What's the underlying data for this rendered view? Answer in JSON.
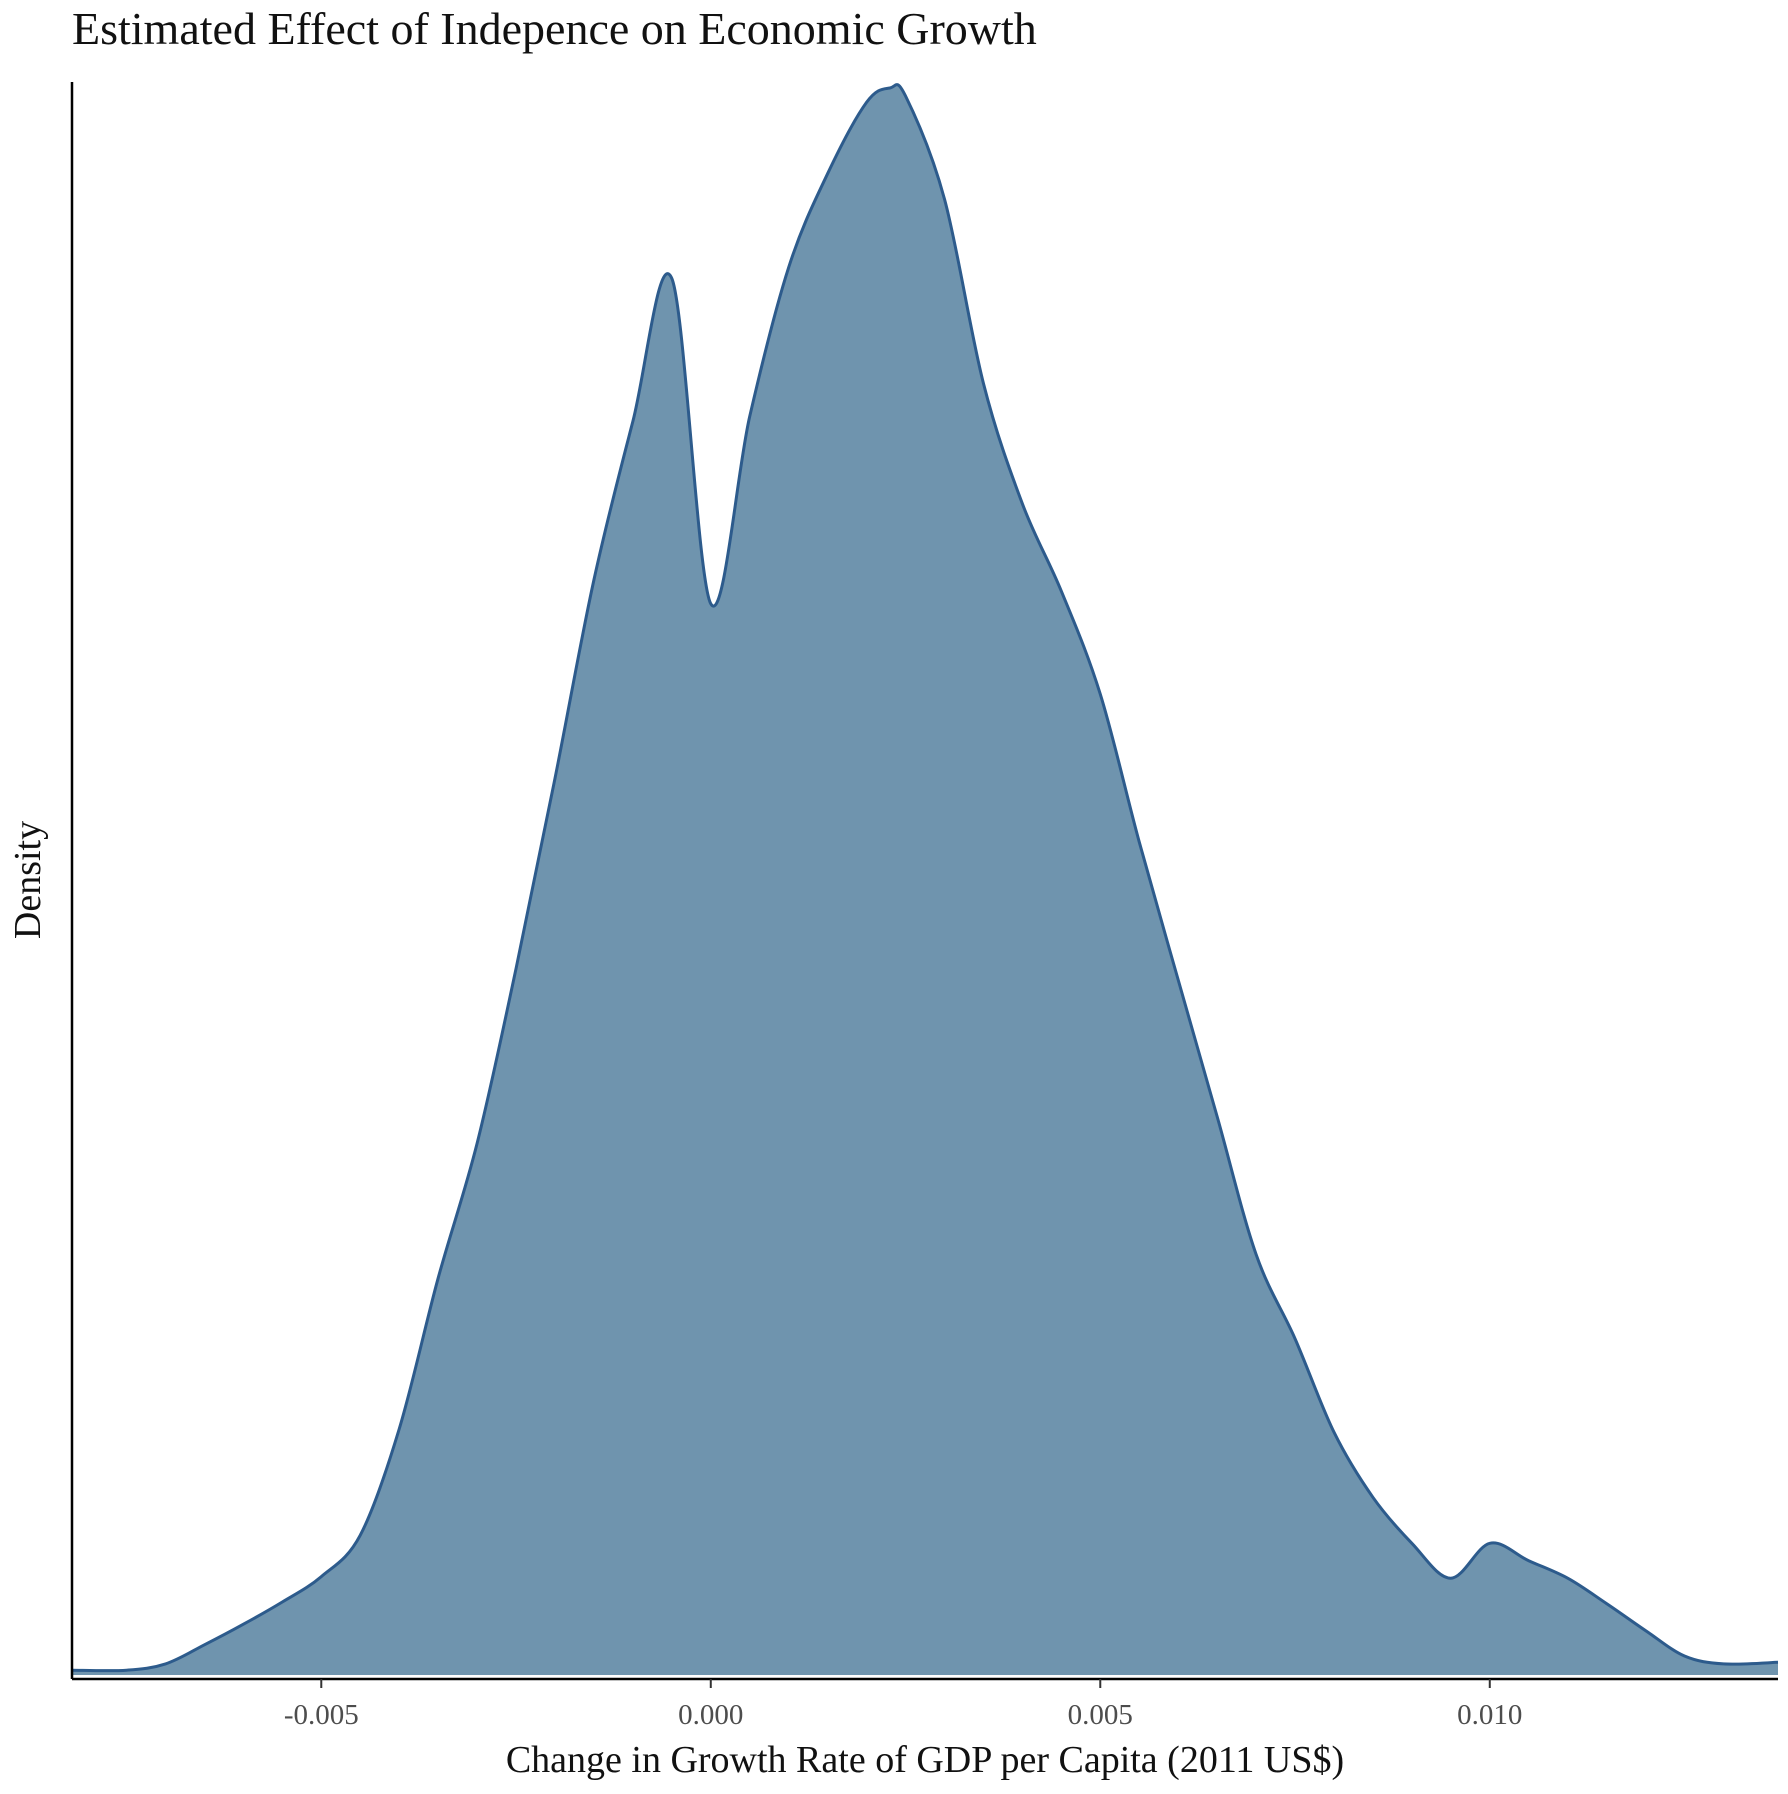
{
  "chart_data": {
    "type": "area",
    "title": "Estimated Effect of Indepence on Economic Growth",
    "xlabel": "Change in Growth Rate of GDP per Capita (2011 US$)",
    "ylabel": "Density",
    "xlim": [
      -0.0082,
      0.0137
    ],
    "ylim": [
      0,
      1.0
    ],
    "x_ticks": [
      -0.005,
      0.0,
      0.005,
      0.01
    ],
    "x_tick_labels": [
      "-0.005",
      "0.000",
      "0.005",
      "0.010"
    ],
    "y_ticks_shown": false,
    "grid": false,
    "legend": "none",
    "fill_color": "#6f94ae",
    "line_color": "#2d5b8c",
    "series": [
      {
        "x": [
          -0.0082,
          -0.0075,
          -0.007,
          -0.0065,
          -0.006,
          -0.0055,
          -0.005,
          -0.0045,
          -0.004,
          -0.0035,
          -0.003,
          -0.0025,
          -0.002,
          -0.0015,
          -0.001,
          -0.0005,
          0.0,
          0.0005,
          0.001,
          0.0015,
          0.002,
          0.0023,
          0.0025,
          0.003,
          0.0035,
          0.004,
          0.0045,
          0.005,
          0.0055,
          0.006,
          0.0065,
          0.007,
          0.0075,
          0.008,
          0.0085,
          0.009,
          0.0095,
          0.01,
          0.0105,
          0.011,
          0.0115,
          0.012,
          0.0125,
          0.013,
          0.0137
        ],
        "y": [
          0.003,
          0.003,
          0.007,
          0.019,
          0.032,
          0.046,
          0.062,
          0.088,
          0.155,
          0.25,
          0.335,
          0.445,
          0.565,
          0.69,
          0.79,
          0.88,
          0.675,
          0.793,
          0.887,
          0.946,
          0.991,
          1.0,
          0.995,
          0.93,
          0.814,
          0.738,
          0.683,
          0.618,
          0.525,
          0.438,
          0.352,
          0.265,
          0.212,
          0.153,
          0.112,
          0.083,
          0.061,
          0.083,
          0.072,
          0.061,
          0.045,
          0.028,
          0.012,
          0.007,
          0.008
        ]
      }
    ]
  }
}
